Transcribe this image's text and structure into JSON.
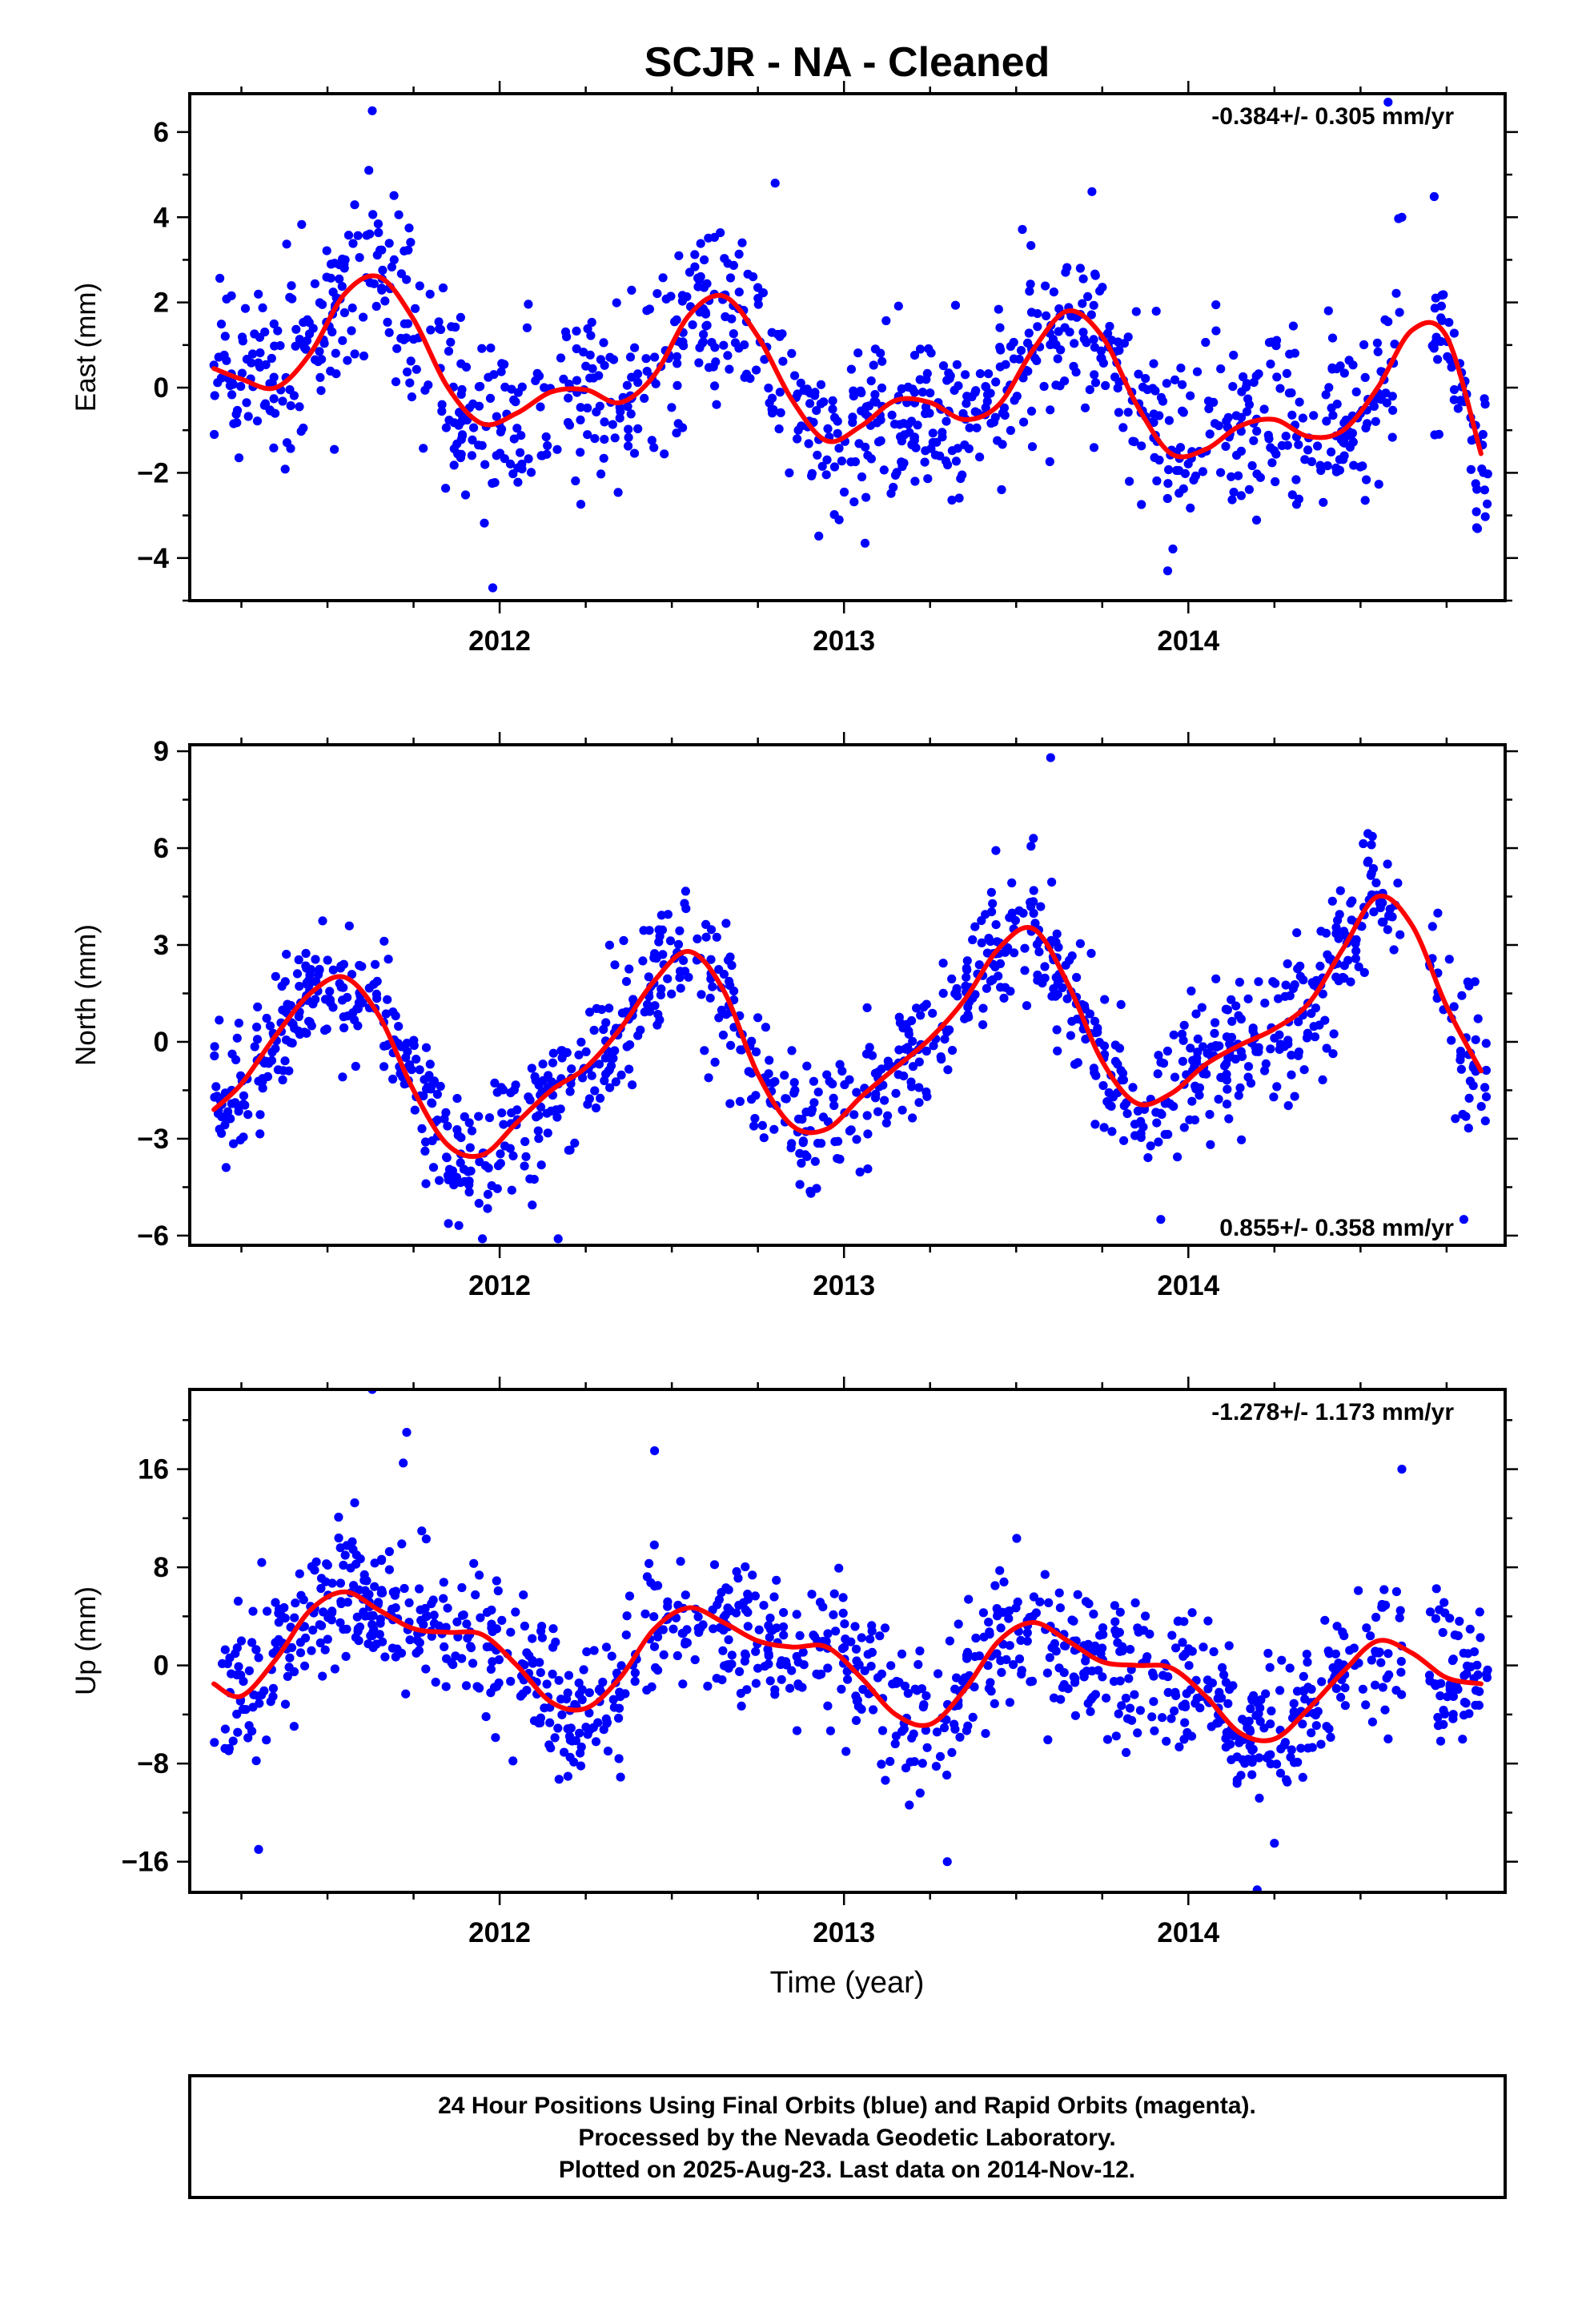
{
  "title": "SCJR  - NA - Cleaned",
  "colors": {
    "final_orbits": "#0000ff",
    "rapid_orbits": "#ff00ff",
    "fit": "#ff0000",
    "frame": "#000000"
  },
  "footer": {
    "line1": "24 Hour Positions Using Final Orbits (blue) and Rapid Orbits (magenta).",
    "line2": "Processed by the Nevada Geodetic Laboratory.",
    "line3": "Plotted on 2025-Aug-23. Last data on 2014-Nov-12."
  },
  "chart_data": [
    {
      "type": "scatter",
      "ylabel": "East (mm)",
      "xlabel": "",
      "xlim": [
        2011.1,
        2014.92
      ],
      "ylim": [
        -5.0,
        6.9
      ],
      "xticks": [
        2012,
        2013,
        2014
      ],
      "yticks": [
        -4,
        -2,
        0,
        2,
        4,
        6
      ],
      "rate_label": "-0.384+/- 0.305 mm/yr",
      "rate_position": "top-right",
      "trend": {
        "name": "",
        "x": [
          2011.17,
          2011.25,
          2011.35,
          2011.45,
          2011.55,
          2011.65,
          2011.75,
          2011.85,
          2011.95,
          2012.05,
          2012.15,
          2012.25,
          2012.35,
          2012.45,
          2012.55,
          2012.65,
          2012.75,
          2012.85,
          2012.95,
          2013.05,
          2013.15,
          2013.25,
          2013.35,
          2013.45,
          2013.55,
          2013.65,
          2013.75,
          2013.85,
          2013.95,
          2014.05,
          2014.15,
          2014.25,
          2014.35,
          2014.45,
          2014.55,
          2014.65,
          2014.75,
          2014.85
        ],
        "y": [
          0.45,
          0.2,
          0.0,
          0.8,
          2.2,
          2.6,
          1.6,
          0.0,
          -0.85,
          -0.6,
          -0.1,
          -0.05,
          -0.35,
          0.3,
          1.7,
          2.15,
          1.2,
          -0.3,
          -1.25,
          -0.9,
          -0.3,
          -0.35,
          -0.75,
          -0.4,
          0.9,
          1.8,
          1.2,
          -0.4,
          -1.55,
          -1.45,
          -0.9,
          -0.75,
          -1.15,
          -1.0,
          0.0,
          1.35,
          1.2,
          -1.55
        ]
      },
      "scatter": {
        "x0": 2011.17,
        "x1": 2014.87,
        "count": 1120,
        "amp": 1.7,
        "seed": 11,
        "outliers": [
          [
            2011.63,
            6.5
          ],
          [
            2011.62,
            5.1
          ],
          [
            2011.98,
            -4.7
          ],
          [
            2012.8,
            4.8
          ],
          [
            2013.72,
            4.6
          ],
          [
            2014.58,
            6.7
          ],
          [
            2014.62,
            4.0
          ],
          [
            2013.94,
            -4.3
          ]
        ]
      }
    },
    {
      "type": "scatter",
      "ylabel": "North (mm)",
      "xlabel": "",
      "xlim": [
        2011.1,
        2014.92
      ],
      "ylim": [
        -6.3,
        9.2
      ],
      "xticks": [
        2012,
        2013,
        2014
      ],
      "yticks": [
        -6,
        -3,
        0,
        3,
        6,
        9
      ],
      "rate_label": "0.855+/- 0.358 mm/yr",
      "rate_position": "bottom-right",
      "trend": {
        "name": "",
        "x": [
          2011.17,
          2011.25,
          2011.35,
          2011.45,
          2011.55,
          2011.65,
          2011.75,
          2011.85,
          2011.95,
          2012.05,
          2012.15,
          2012.25,
          2012.35,
          2012.45,
          2012.55,
          2012.65,
          2012.75,
          2012.85,
          2012.95,
          2013.05,
          2013.15,
          2013.25,
          2013.35,
          2013.45,
          2013.55,
          2013.65,
          2013.75,
          2013.85,
          2013.95,
          2014.05,
          2014.15,
          2014.25,
          2014.35,
          2014.45,
          2014.55,
          2014.65,
          2014.75,
          2014.85
        ],
        "y": [
          -2.1,
          -1.3,
          0.2,
          1.5,
          2.0,
          0.8,
          -1.5,
          -3.2,
          -3.5,
          -2.5,
          -1.5,
          -0.8,
          0.4,
          1.9,
          2.8,
          1.6,
          -1.0,
          -2.6,
          -2.7,
          -1.7,
          -0.8,
          0.1,
          1.3,
          2.9,
          3.5,
          1.8,
          -0.6,
          -1.9,
          -1.6,
          -0.7,
          -0.1,
          0.4,
          1.2,
          2.9,
          4.5,
          3.6,
          1.1,
          -0.9
        ]
      },
      "scatter": {
        "x0": 2011.17,
        "x1": 2014.87,
        "count": 1120,
        "amp": 1.7,
        "seed": 23,
        "outliers": [
          [
            2013.6,
            8.8
          ],
          [
            2012.17,
            -6.1
          ],
          [
            2011.95,
            -6.1
          ],
          [
            2014.8,
            -5.5
          ],
          [
            2013.92,
            -5.5
          ],
          [
            2013.55,
            6.3
          ]
        ]
      }
    },
    {
      "type": "scatter",
      "ylabel": "Up (mm)",
      "xlabel": "Time (year)",
      "xlim": [
        2011.1,
        2014.92
      ],
      "ylim": [
        -18.5,
        22.5
      ],
      "xticks": [
        2012,
        2013,
        2014
      ],
      "yticks": [
        -16,
        -8,
        0,
        8,
        16
      ],
      "rate_label": "-1.278+/- 1.173 mm/yr",
      "rate_position": "top-right",
      "trend": {
        "name": "",
        "x": [
          2011.17,
          2011.25,
          2011.35,
          2011.45,
          2011.55,
          2011.65,
          2011.75,
          2011.85,
          2011.95,
          2012.05,
          2012.15,
          2012.25,
          2012.35,
          2012.45,
          2012.55,
          2012.65,
          2012.75,
          2012.85,
          2012.95,
          2013.05,
          2013.15,
          2013.25,
          2013.35,
          2013.45,
          2013.55,
          2013.65,
          2013.75,
          2013.85,
          2013.95,
          2014.05,
          2014.15,
          2014.25,
          2014.35,
          2014.45,
          2014.55,
          2014.65,
          2014.75,
          2014.85
        ],
        "y": [
          -1.5,
          -2.5,
          0.5,
          4.5,
          6.0,
          4.5,
          3.0,
          2.7,
          2.5,
          0.0,
          -3.0,
          -3.5,
          -1.0,
          3.0,
          4.7,
          3.5,
          2.0,
          1.5,
          1.5,
          -1.0,
          -4.0,
          -4.8,
          -2.0,
          2.0,
          3.5,
          2.0,
          0.3,
          0.0,
          -0.2,
          -2.5,
          -5.5,
          -6.0,
          -3.5,
          -0.5,
          2.0,
          1.0,
          -1.0,
          -1.5
        ]
      },
      "scatter": {
        "x0": 2011.17,
        "x1": 2014.87,
        "count": 1120,
        "amp": 4.8,
        "seed": 37,
        "outliers": [
          [
            2011.63,
            22.5
          ],
          [
            2011.73,
            19.0
          ],
          [
            2011.72,
            16.5
          ],
          [
            2012.45,
            17.5
          ],
          [
            2014.62,
            16.0
          ],
          [
            2014.2,
            -18.3
          ],
          [
            2011.3,
            -15.0
          ],
          [
            2013.3,
            -16.0
          ],
          [
            2014.25,
            -14.5
          ]
        ]
      }
    }
  ]
}
